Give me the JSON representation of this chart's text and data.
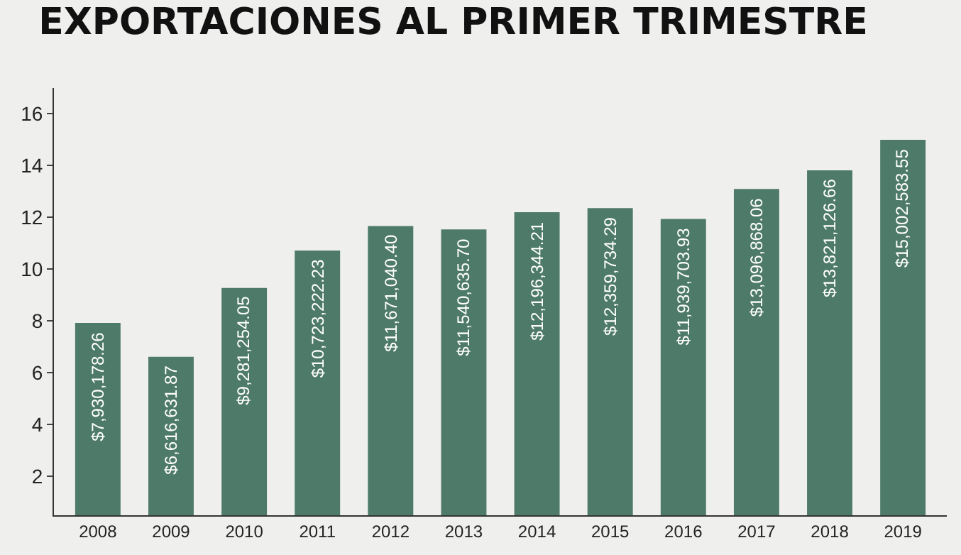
{
  "chart_data": {
    "type": "bar",
    "title": "EXPORTACIONES AL PRIMER TRIMESTRE",
    "categories": [
      "2008",
      "2009",
      "2010",
      "2011",
      "2012",
      "2013",
      "2014",
      "2015",
      "2016",
      "2017",
      "2018",
      "2019"
    ],
    "values": [
      7.93,
      6.62,
      9.28,
      10.72,
      11.67,
      11.54,
      12.2,
      12.36,
      11.94,
      13.1,
      13.82,
      15.0
    ],
    "annotations": [
      {
        "text": "$7,930,178.26",
        "x": "2008",
        "y": 7.93
      },
      {
        "text": "$6,616,631.87",
        "x": "2009",
        "y": 6.62
      },
      {
        "text": "$9,281,254.05",
        "x": "2010",
        "y": 9.28
      },
      {
        "text": "$10,723,222.23",
        "x": "2011",
        "y": 10.72
      },
      {
        "text": "$11,671,040.40",
        "x": "2012",
        "y": 11.67
      },
      {
        "text": "$11,540,635.70",
        "x": "2013",
        "y": 11.54
      },
      {
        "text": "$12,196,344.21",
        "x": "2014",
        "y": 12.2
      },
      {
        "text": "$12,359,734.29",
        "x": "2015",
        "y": 12.36
      },
      {
        "text": "$11,939,703.93",
        "x": "2016",
        "y": 11.94
      },
      {
        "text": "$13,096,868.06",
        "x": "2017",
        "y": 13.1
      },
      {
        "text": "$13,821,126.66",
        "x": "2018",
        "y": 13.82
      },
      {
        "text": "$15,002,583.55",
        "x": "2019",
        "y": 15.0
      }
    ],
    "color": "#4e7a69",
    "ylim": [
      0.5,
      17
    ],
    "yticks": [
      2,
      4,
      6,
      8,
      10,
      12,
      14,
      16
    ],
    "grid": false,
    "legend": false
  }
}
